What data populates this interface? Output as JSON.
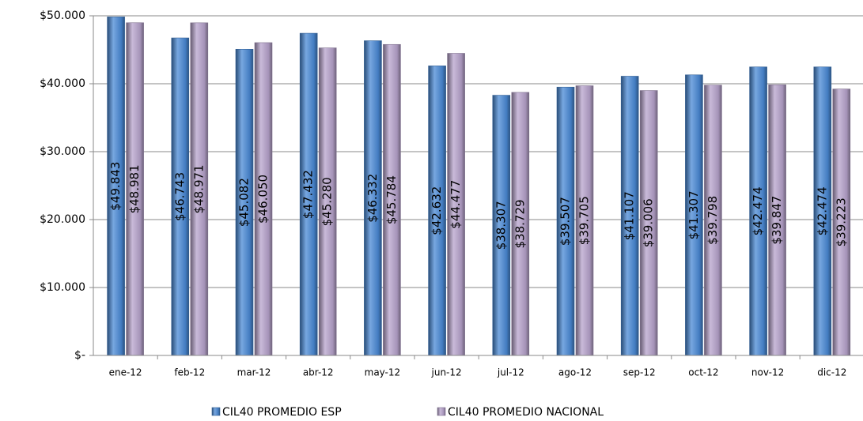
{
  "chart_data": {
    "type": "bar",
    "categories": [
      "ene-12",
      "feb-12",
      "mar-12",
      "abr-12",
      "may-12",
      "jun-12",
      "jul-12",
      "ago-12",
      "sep-12",
      "oct-12",
      "nov-12",
      "dic-12"
    ],
    "series": [
      {
        "name": "CIL40 PROMEDIO ESP",
        "color": "#4a8ad6",
        "values": [
          49843,
          46743,
          45082,
          47432,
          46332,
          42632,
          38307,
          39507,
          41107,
          41307,
          42474,
          42474
        ],
        "value_labels": [
          "$49.843",
          "$46.743",
          "$45.082",
          "$47.432",
          "$46.332",
          "$42.632",
          "$38.307",
          "$39.507",
          "$41.107",
          "$41.307",
          "$42.474",
          "$42.474"
        ]
      },
      {
        "name": "CIL40 PROMEDIO NACIONAL",
        "color": "#b7a3cc",
        "values": [
          48981,
          48971,
          46050,
          45280,
          45784,
          44477,
          38729,
          39705,
          39006,
          39798,
          39847,
          39223
        ],
        "value_labels": [
          "$48.981",
          "$48.971",
          "$46.050",
          "$45.280",
          "$45.784",
          "$44.477",
          "$38.729",
          "$39.705",
          "$39.006",
          "$39.798",
          "$39.847",
          "$39.223"
        ]
      }
    ],
    "ylim": [
      0,
      50000
    ],
    "yticks": [
      {
        "value": 0,
        "label": "$-"
      },
      {
        "value": 10000,
        "label": "$10.000"
      },
      {
        "value": 20000,
        "label": "$20.000"
      },
      {
        "value": 30000,
        "label": "$30.000"
      },
      {
        "value": 40000,
        "label": "$40.000"
      },
      {
        "value": 50000,
        "label": "$50.000"
      }
    ],
    "grid": true,
    "legend": "bottom"
  }
}
